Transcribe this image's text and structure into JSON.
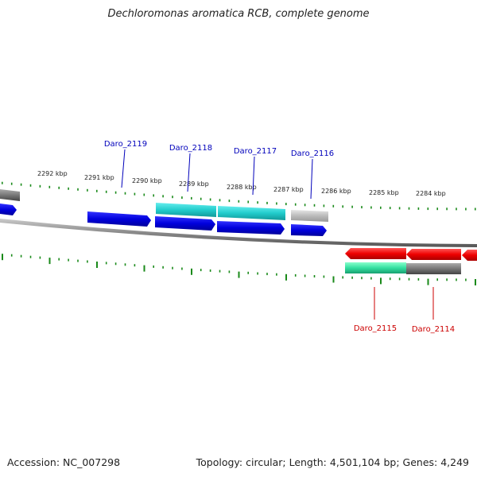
{
  "title": "Dechloromonas aromatica RCB, complete genome",
  "footer": {
    "accession": "Accession: NC_007298",
    "summary": "Topology: circular; Length: 4,501,104 bp; Genes: 4,249"
  },
  "ruler_labels": [
    "2292 kbp",
    "2291 kbp",
    "2290 kbp",
    "2289 kbp",
    "2288 kbp",
    "2287 kbp",
    "2286 kbp",
    "2285 kbp",
    "2284 kbp"
  ],
  "gene_labels_top": [
    "Daro_2119",
    "Daro_2118",
    "Daro_2117",
    "Daro_2116"
  ],
  "gene_labels_bottom": [
    "Daro_2115",
    "Daro_2114"
  ],
  "colors": {
    "forward_cds": "#0000dd",
    "forward_highlight": "#22cccc",
    "reverse_cds": "#ee0000",
    "reverse_highlight": "#33e0a0",
    "neutral": "#777777",
    "light_neutral": "#bbbbbb",
    "tick": "#1a8a1a",
    "label_top": "#0000bb",
    "label_bottom": "#cc0000"
  }
}
